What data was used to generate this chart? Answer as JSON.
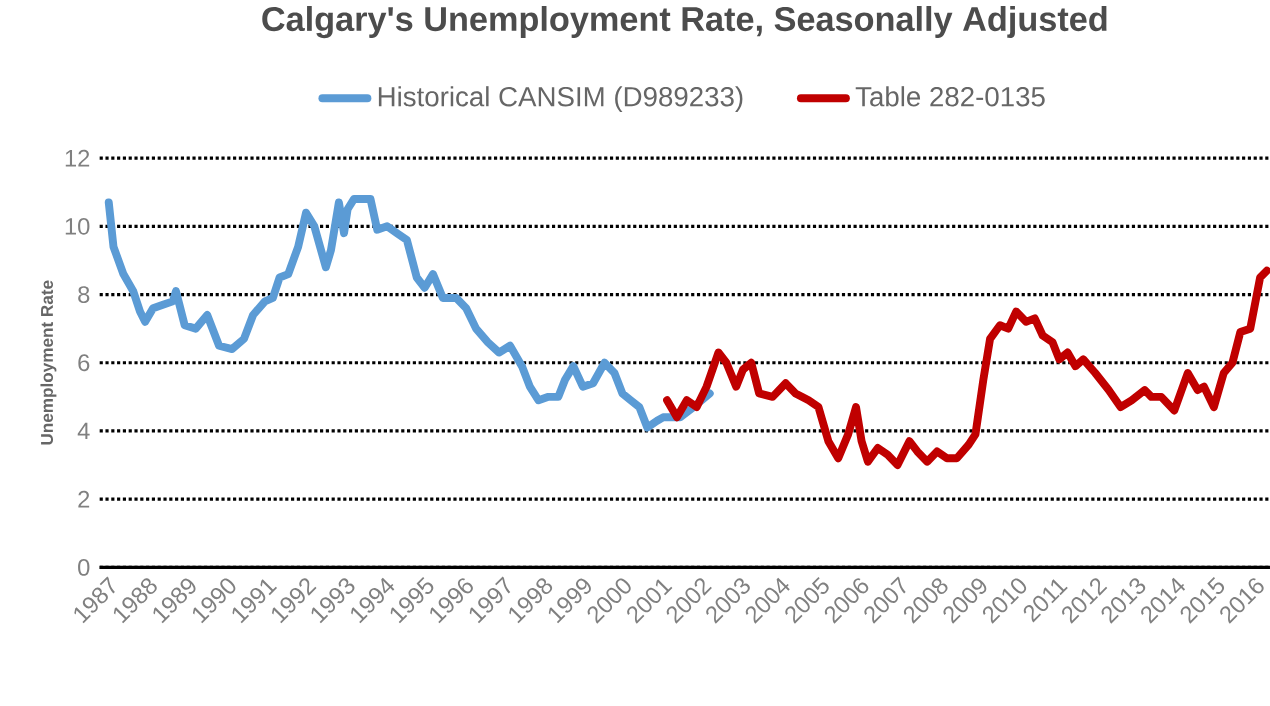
{
  "chart_data": {
    "type": "line",
    "title": "Calgary's Unemployment Rate, Seasonally Adjusted",
    "ylabel": "Unemployment Rate",
    "xlim": [
      1986.85,
      2016.45
    ],
    "xticks": [
      1987,
      1988,
      1989,
      1990,
      1991,
      1992,
      1993,
      1994,
      1995,
      1996,
      1997,
      1998,
      1999,
      2000,
      2001,
      2002,
      2003,
      2004,
      2005,
      2006,
      2007,
      2008,
      2009,
      2010,
      2011,
      2012,
      2013,
      2014,
      2015,
      2016
    ],
    "ylim": [
      0,
      12
    ],
    "yticks": [
      0,
      2,
      4,
      6,
      8,
      10,
      12
    ],
    "grid": "y",
    "legend": "top",
    "series": [
      {
        "name": "Historical CANSIM (D989233)",
        "color": "#5b9bd5",
        "x": [
          1987.08,
          1987.2,
          1987.45,
          1987.7,
          1987.87,
          1988.0,
          1988.2,
          1988.45,
          1988.7,
          1988.78,
          1989.0,
          1989.28,
          1989.57,
          1989.87,
          1990.2,
          1990.5,
          1990.73,
          1991.03,
          1991.23,
          1991.4,
          1991.62,
          1991.87,
          1992.07,
          1992.28,
          1992.57,
          1992.7,
          1992.9,
          1993.03,
          1993.12,
          1993.28,
          1993.53,
          1993.7,
          1993.87,
          1994.12,
          1994.37,
          1994.62,
          1994.87,
          1995.07,
          1995.28,
          1995.53,
          1995.87,
          1996.12,
          1996.37,
          1996.67,
          1996.95,
          1997.23,
          1997.53,
          1997.73,
          1997.95,
          1998.2,
          1998.45,
          1998.62,
          1998.83,
          1999.07,
          1999.33,
          1999.62,
          1999.87,
          2000.07,
          2000.28,
          2000.5,
          2000.7,
          2000.95,
          2001.1,
          2001.53,
          2001.87,
          2002.28
        ],
        "values": [
          10.7,
          9.4,
          8.6,
          8.1,
          7.5,
          7.2,
          7.6,
          7.7,
          7.8,
          8.1,
          7.1,
          7.0,
          7.4,
          6.5,
          6.4,
          6.7,
          7.4,
          7.8,
          7.9,
          8.5,
          8.6,
          9.4,
          10.4,
          10.0,
          8.8,
          9.3,
          10.7,
          9.8,
          10.5,
          10.8,
          10.8,
          10.8,
          9.9,
          10.0,
          9.8,
          9.6,
          8.5,
          8.2,
          8.6,
          7.9,
          7.9,
          7.6,
          7.0,
          6.6,
          6.3,
          6.5,
          5.9,
          5.3,
          4.9,
          5.0,
          5.0,
          5.5,
          5.9,
          5.3,
          5.4,
          6.0,
          5.7,
          5.1,
          4.9,
          4.7,
          4.1,
          4.3,
          4.4,
          4.4,
          4.7,
          5.1
        ]
      },
      {
        "name": "Table 282-0135",
        "color": "#c00000",
        "x": [
          2001.2,
          2001.45,
          2001.7,
          2001.95,
          2002.2,
          2002.5,
          2002.7,
          2002.95,
          2003.12,
          2003.33,
          2003.53,
          2003.87,
          2004.2,
          2004.45,
          2004.78,
          2005.03,
          2005.28,
          2005.53,
          2005.78,
          2005.98,
          2006.12,
          2006.28,
          2006.53,
          2006.78,
          2007.03,
          2007.33,
          2007.53,
          2007.78,
          2008.03,
          2008.28,
          2008.53,
          2008.83,
          2009.0,
          2009.2,
          2009.37,
          2009.62,
          2009.83,
          2010.03,
          2010.28,
          2010.5,
          2010.7,
          2010.95,
          2011.12,
          2011.33,
          2011.53,
          2011.73,
          2012.03,
          2012.37,
          2012.67,
          2012.95,
          2013.28,
          2013.45,
          2013.7,
          2014.03,
          2014.37,
          2014.62,
          2014.78,
          2015.03,
          2015.28,
          2015.5,
          2015.7,
          2015.95,
          2016.2,
          2016.37
        ],
        "values": [
          4.9,
          4.4,
          4.9,
          4.7,
          5.3,
          6.3,
          6.0,
          5.3,
          5.8,
          6.0,
          5.1,
          5.0,
          5.4,
          5.1,
          4.9,
          4.7,
          3.7,
          3.2,
          3.9,
          4.7,
          3.7,
          3.1,
          3.5,
          3.3,
          3.0,
          3.7,
          3.4,
          3.1,
          3.4,
          3.2,
          3.2,
          3.6,
          3.9,
          5.5,
          6.7,
          7.1,
          7.0,
          7.5,
          7.2,
          7.3,
          6.8,
          6.6,
          6.1,
          6.3,
          5.9,
          6.1,
          5.7,
          5.2,
          4.7,
          4.9,
          5.2,
          5.0,
          5.0,
          4.6,
          5.7,
          5.2,
          5.3,
          4.7,
          5.7,
          6.0,
          6.9,
          7.0,
          8.5,
          8.7
        ]
      }
    ]
  }
}
